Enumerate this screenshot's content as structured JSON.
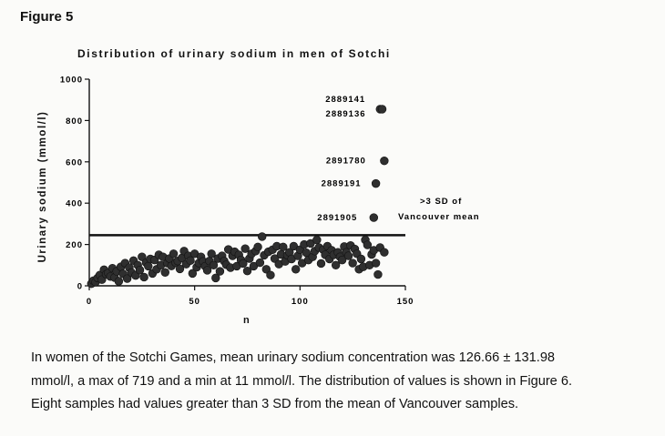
{
  "figure_label": "Figure 5",
  "chart_data": {
    "type": "scatter",
    "title": "Distribution of urinary sodium in men of Sotchi",
    "xlabel": "n",
    "ylabel": "Urinary sodium (mmol/l)",
    "xlim": [
      0,
      150
    ],
    "ylim": [
      0,
      1000
    ],
    "x_ticks": [
      0,
      50,
      100,
      150
    ],
    "y_ticks": [
      0,
      200,
      400,
      600,
      800,
      1000
    ],
    "grid": false,
    "threshold": {
      "value": 245,
      "x_end": 150,
      "label_line1": ">3 SD of",
      "label_line2": "Vancouver mean"
    },
    "labeled_points": [
      {
        "x": 138,
        "y": 855,
        "id": "2889141"
      },
      {
        "x": 139,
        "y": 855,
        "id": "2889136"
      },
      {
        "x": 140,
        "y": 605,
        "id": "2891780"
      },
      {
        "x": 136,
        "y": 495,
        "id": "2889191"
      },
      {
        "x": 135,
        "y": 330,
        "id": "2891905"
      }
    ],
    "points": [
      [
        1,
        10
      ],
      [
        2,
        25
      ],
      [
        3,
        18
      ],
      [
        4,
        38
      ],
      [
        5,
        52
      ],
      [
        6,
        30
      ],
      [
        7,
        78
      ],
      [
        8,
        56
      ],
      [
        9,
        62
      ],
      [
        10,
        45
      ],
      [
        11,
        85
      ],
      [
        12,
        40
      ],
      [
        13,
        70
      ],
      [
        14,
        22
      ],
      [
        15,
        92
      ],
      [
        16,
        58
      ],
      [
        17,
        110
      ],
      [
        18,
        35
      ],
      [
        19,
        88
      ],
      [
        20,
        64
      ],
      [
        21,
        122
      ],
      [
        22,
        50
      ],
      [
        23,
        100
      ],
      [
        24,
        76
      ],
      [
        25,
        140
      ],
      [
        26,
        42
      ],
      [
        27,
        112
      ],
      [
        28,
        95
      ],
      [
        29,
        130
      ],
      [
        30,
        60
      ],
      [
        31,
        125
      ],
      [
        32,
        80
      ],
      [
        33,
        150
      ],
      [
        34,
        100
      ],
      [
        35,
        140
      ],
      [
        36,
        65
      ],
      [
        37,
        110
      ],
      [
        38,
        132
      ],
      [
        39,
        96
      ],
      [
        40,
        155
      ],
      [
        41,
        112
      ],
      [
        42,
        120
      ],
      [
        43,
        82
      ],
      [
        44,
        135
      ],
      [
        45,
        168
      ],
      [
        46,
        105
      ],
      [
        47,
        145
      ],
      [
        48,
        122
      ],
      [
        49,
        60
      ],
      [
        50,
        155
      ],
      [
        51,
        90
      ],
      [
        52,
        110
      ],
      [
        53,
        140
      ],
      [
        54,
        118
      ],
      [
        55,
        95
      ],
      [
        56,
        75
      ],
      [
        57,
        120
      ],
      [
        58,
        155
      ],
      [
        59,
        100
      ],
      [
        60,
        38
      ],
      [
        61,
        132
      ],
      [
        62,
        70
      ],
      [
        63,
        145
      ],
      [
        64,
        120
      ],
      [
        65,
        102
      ],
      [
        66,
        176
      ],
      [
        67,
        88
      ],
      [
        68,
        145
      ],
      [
        69,
        165
      ],
      [
        70,
        95
      ],
      [
        71,
        150
      ],
      [
        72,
        125
      ],
      [
        73,
        108
      ],
      [
        74,
        180
      ],
      [
        75,
        72
      ],
      [
        76,
        132
      ],
      [
        77,
        155
      ],
      [
        78,
        95
      ],
      [
        79,
        168
      ],
      [
        80,
        188
      ],
      [
        81,
        112
      ],
      [
        82,
        238
      ],
      [
        83,
        148
      ],
      [
        84,
        80
      ],
      [
        85,
        165
      ],
      [
        86,
        52
      ],
      [
        87,
        175
      ],
      [
        88,
        132
      ],
      [
        89,
        192
      ],
      [
        90,
        105
      ],
      [
        91,
        152
      ],
      [
        92,
        188
      ],
      [
        93,
        118
      ],
      [
        94,
        148
      ],
      [
        95,
        162
      ],
      [
        96,
        130
      ],
      [
        97,
        192
      ],
      [
        98,
        80
      ],
      [
        99,
        145
      ],
      [
        100,
        175
      ],
      [
        101,
        110
      ],
      [
        102,
        200
      ],
      [
        103,
        160
      ],
      [
        104,
        125
      ],
      [
        105,
        205
      ],
      [
        106,
        140
      ],
      [
        107,
        168
      ],
      [
        108,
        222
      ],
      [
        109,
        185
      ],
      [
        110,
        108
      ],
      [
        111,
        175
      ],
      [
        112,
        150
      ],
      [
        113,
        192
      ],
      [
        114,
        130
      ],
      [
        115,
        172
      ],
      [
        116,
        150
      ],
      [
        117,
        100
      ],
      [
        118,
        162
      ],
      [
        119,
        140
      ],
      [
        120,
        125
      ],
      [
        121,
        190
      ],
      [
        122,
        162
      ],
      [
        123,
        145
      ],
      [
        124,
        195
      ],
      [
        125,
        110
      ],
      [
        126,
        178
      ],
      [
        127,
        155
      ],
      [
        128,
        80
      ],
      [
        129,
        130
      ],
      [
        130,
        92
      ],
      [
        131,
        222
      ],
      [
        132,
        198
      ],
      [
        133,
        100
      ],
      [
        134,
        152
      ],
      [
        135,
        172
      ],
      [
        136,
        110
      ],
      [
        137,
        55
      ],
      [
        138,
        185
      ],
      [
        140,
        162
      ]
    ]
  },
  "caption": {
    "line1": "In women of the Sotchi Games, mean urinary sodium concentration was 126.66 ± 131.98",
    "line2": "mmol/l, a max of 719 and a min at 11 mmol/l. The distribution of values is shown in Figure 6.",
    "line3": "Eight samples had values greater than 3 SD from the mean of Vancouver samples."
  }
}
